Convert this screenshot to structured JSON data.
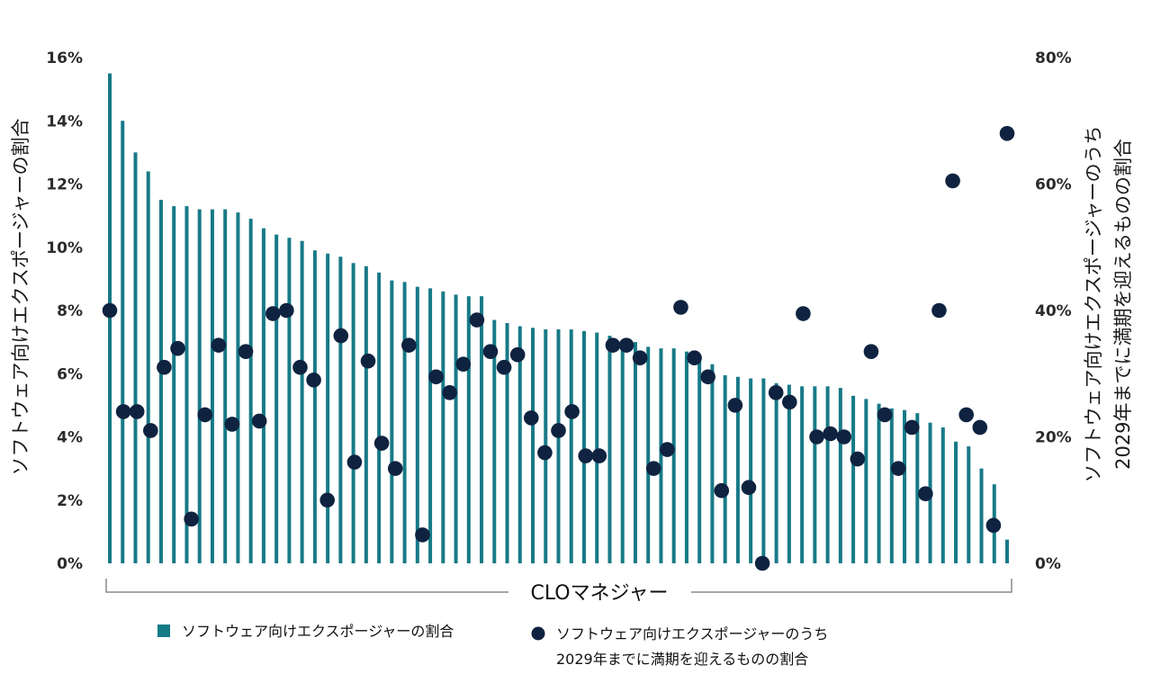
{
  "chart_data": {
    "type": "bar+scatter",
    "xlabel": "CLOマネジャー",
    "ylabel_left": "ソフトウェア向けエクスポージャーの割合",
    "ylabel_right": [
      "ソフトウェア向けエクスポージャーのうち",
      "2029年までに満期を迎えるものの割合"
    ],
    "left_axis": {
      "min": 0,
      "max": 16,
      "ticks": [
        0,
        2,
        4,
        6,
        8,
        10,
        12,
        14,
        16
      ],
      "tick_labels": [
        "0%",
        "2%",
        "4%",
        "6%",
        "8%",
        "10%",
        "12%",
        "14%",
        "16%"
      ]
    },
    "right_axis": {
      "min": 0,
      "max": 80,
      "ticks": [
        0,
        20,
        40,
        60,
        80
      ],
      "tick_labels": [
        "0%",
        "20%",
        "40%",
        "60%",
        "80%"
      ]
    },
    "series": [
      {
        "name": "ソフトウェア向けエクスポージャーの割合",
        "type": "bar",
        "axis": "left",
        "color": "#177a87",
        "values": [
          15.5,
          14.0,
          13.0,
          12.4,
          11.5,
          11.3,
          11.3,
          11.2,
          11.2,
          11.2,
          11.1,
          10.9,
          10.6,
          10.4,
          10.3,
          10.2,
          9.9,
          9.8,
          9.7,
          9.5,
          9.4,
          9.2,
          8.95,
          8.9,
          8.75,
          8.7,
          8.6,
          8.5,
          8.45,
          8.45,
          7.7,
          7.6,
          7.5,
          7.45,
          7.4,
          7.4,
          7.4,
          7.35,
          7.3,
          7.2,
          7.05,
          7.0,
          6.85,
          6.8,
          6.8,
          6.7,
          6.5,
          6.3,
          5.95,
          5.9,
          5.85,
          5.85,
          5.7,
          5.65,
          5.6,
          5.6,
          5.6,
          5.55,
          5.3,
          5.2,
          5.05,
          4.9,
          4.85,
          4.75,
          4.45,
          4.3,
          3.85,
          3.7,
          3.0,
          2.5,
          0.75
        ]
      },
      {
        "name": "ソフトウェア向けエクスポージャーのうち2029年までに満期を迎えるものの割合",
        "type": "scatter",
        "axis": "right",
        "color": "#0f2340",
        "values": [
          40,
          24,
          24,
          21,
          31,
          34,
          7,
          23.5,
          34.5,
          22,
          33.5,
          22.5,
          39.5,
          40,
          31,
          29,
          10,
          36,
          16,
          32,
          19,
          15,
          34.5,
          4.5,
          29.5,
          27,
          31.5,
          38.5,
          33.5,
          31,
          33,
          23,
          17.5,
          21,
          24,
          17,
          17,
          34.5,
          34.5,
          32.5,
          15,
          18,
          40.5,
          32.5,
          29.5,
          11.5,
          25,
          12,
          0,
          27,
          25.5,
          39.5,
          20,
          20.5,
          20,
          16.5,
          33.5,
          23.5,
          15,
          21.5,
          11,
          40,
          60.5,
          23.5,
          21.5,
          6,
          68
        ]
      }
    ],
    "legend": [
      {
        "marker": "square",
        "label": "ソフトウェア向けエクスポージャーの割合",
        "color": "#177a87"
      },
      {
        "marker": "circle",
        "label_lines": [
          "ソフトウェア向けエクスポージャーのうち",
          "2029年までに満期を迎えるものの割合"
        ],
        "color": "#0f2340"
      }
    ]
  }
}
